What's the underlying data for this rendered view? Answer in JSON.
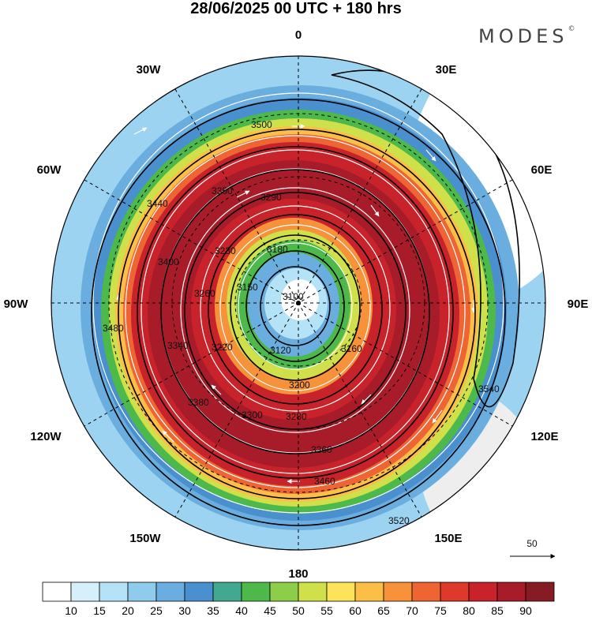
{
  "title": "28/06/2025  00 UTC  + 180 hrs",
  "brand": "MODES",
  "brand_mark": "©",
  "longitude_labels": {
    "top": "0",
    "top_left": "30W",
    "top_right": "30E",
    "upper_left": "60W",
    "upper_right": "60E",
    "left": "90W",
    "right": "90E",
    "lower_left": "120W",
    "lower_right": "120E",
    "bottom_left": "150W",
    "bottom_right": "150E",
    "bottom": "180"
  },
  "reference_vector": {
    "label": "50"
  },
  "colorbar": {
    "colors": [
      "#ffffff",
      "#d6f0fb",
      "#b4e2f6",
      "#8ecbed",
      "#6aaedf",
      "#4a8fce",
      "#42a890",
      "#4cb94a",
      "#8ccd49",
      "#cfe04a",
      "#fde35a",
      "#fbbe46",
      "#f7923a",
      "#ee6433",
      "#dd3a2b",
      "#c8232a",
      "#a81c2a",
      "#861b23"
    ],
    "labels": [
      "10",
      "15",
      "20",
      "25",
      "30",
      "35",
      "40",
      "45",
      "50",
      "55",
      "60",
      "65",
      "70",
      "75",
      "80",
      "85",
      "90"
    ]
  },
  "contours": [
    {
      "value": "3100",
      "label": "3100"
    },
    {
      "value": "3120",
      "label": "3120"
    },
    {
      "value": "3150",
      "label": "3150"
    },
    {
      "value": "3160",
      "label": "3160"
    },
    {
      "value": "3180",
      "label": "3180"
    },
    {
      "value": "3200",
      "label": "3200"
    },
    {
      "value": "3220",
      "label": "3220"
    },
    {
      "value": "3230",
      "label": "3230"
    },
    {
      "value": "3260",
      "label": "3260"
    },
    {
      "value": "3280",
      "label": "3280"
    },
    {
      "value": "3290",
      "label": "3290"
    },
    {
      "value": "3300",
      "label": "3300"
    },
    {
      "value": "3340",
      "label": "3340"
    },
    {
      "value": "3350",
      "label": "3350"
    },
    {
      "value": "3360",
      "label": "3360"
    },
    {
      "value": "3380",
      "label": "3380"
    },
    {
      "value": "3400",
      "label": "3400"
    },
    {
      "value": "3440",
      "label": "3440"
    },
    {
      "value": "3460",
      "label": "3460"
    },
    {
      "value": "3480",
      "label": "3480"
    },
    {
      "value": "3500",
      "label": "3500"
    },
    {
      "value": "3520",
      "label": "3520"
    },
    {
      "value": "3540",
      "label": "3540"
    }
  ]
}
